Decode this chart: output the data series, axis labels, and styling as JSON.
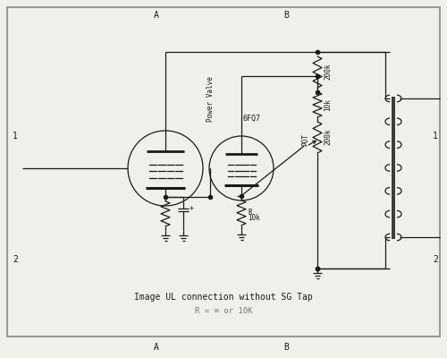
{
  "bg_color": "#f0f0eb",
  "line_color": "#1a1a1a",
  "border_color": "#999999",
  "title_text": "Image UL connection without SG Tap",
  "subtitle_text": "R = ∞ or 10K",
  "label_A1": "A",
  "label_B1": "B",
  "label_A2": "A",
  "label_B2": "B",
  "label_1L": "1",
  "label_1R": "1",
  "label_2L": "2",
  "label_2R": "2",
  "tube1_label": "Power Valve",
  "tube2_label": "6FQ7",
  "r1_label": "200k",
  "r2_label": "10k",
  "r3_label": "200k",
  "r4_label": "R",
  "r4b_label": "10k",
  "pot_label": "POT",
  "figsize": [
    5.0,
    4.0
  ],
  "dpi": 100
}
